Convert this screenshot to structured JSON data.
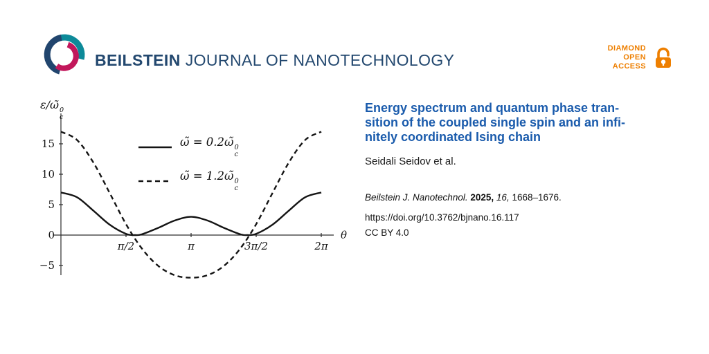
{
  "header": {
    "journal_name_bold": "BEILSTEIN",
    "journal_name_rest": "JOURNAL OF NANOTECHNOLOGY",
    "badge": {
      "line1": "DIAMOND",
      "line2": "OPEN",
      "line3": "ACCESS"
    },
    "brand_colors": {
      "navy": "#21456e",
      "teal": "#0d8a99",
      "crimson": "#c2175b",
      "orange": "#ee7f00"
    }
  },
  "article": {
    "title_lines": [
      "Energy spectrum and quantum phase tran-",
      "sition of the coupled single spin and an infi-",
      "nitely coordinated Ising chain"
    ],
    "title_color": "#1a5bac",
    "authors": "Seidali Seidov et al.",
    "citation": {
      "journal": "Beilstein J. Nanotechnol.",
      "year": "2025,",
      "volume": "16,",
      "pages": "1668–1676."
    },
    "doi": "https://doi.org/10.3762/bjnano.16.117",
    "license": "CC BY 4.0"
  },
  "chart_data": {
    "type": "line",
    "xlabel": "θ",
    "ylabel_parts": {
      "lead": "ε/ω̃",
      "sup": "0",
      "sub": "c"
    },
    "xlim_pi": [
      0,
      2
    ],
    "ylim": [
      -8,
      18
    ],
    "grid": false,
    "legend_position": "inside top-center",
    "xticks": [
      {
        "pos_pi": 0.5,
        "label": "π/2"
      },
      {
        "pos_pi": 1,
        "label": "π"
      },
      {
        "pos_pi": 1.5,
        "label": "3π/2"
      },
      {
        "pos_pi": 2,
        "label": "2π"
      }
    ],
    "yticks": [
      {
        "value": 15,
        "label": "15"
      },
      {
        "value": 10,
        "label": "10"
      },
      {
        "value": 5,
        "label": "5"
      },
      {
        "value": 0,
        "label": "0"
      },
      {
        "value": -5,
        "label": "−5"
      }
    ],
    "series": [
      {
        "name": "ω̃ = 0.2ω̃c^0",
        "label_parts": {
          "lead": "ω̃ = 0.2ω̃",
          "sup": "0",
          "sub": "c"
        },
        "style": "solid",
        "color": "#141414",
        "points": [
          [
            0,
            7.0
          ],
          [
            0.125,
            6.2
          ],
          [
            0.25,
            4.0
          ],
          [
            0.375,
            1.7
          ],
          [
            0.5,
            0.2
          ],
          [
            0.57,
            0.0
          ],
          [
            0.625,
            0.15
          ],
          [
            0.75,
            1.2
          ],
          [
            0.875,
            2.4
          ],
          [
            1,
            3.0
          ],
          [
            1.125,
            2.4
          ],
          [
            1.25,
            1.2
          ],
          [
            1.375,
            0.15
          ],
          [
            1.43,
            0.0
          ],
          [
            1.5,
            0.2
          ],
          [
            1.625,
            1.7
          ],
          [
            1.75,
            4.0
          ],
          [
            1.875,
            6.2
          ],
          [
            2,
            7.0
          ]
        ]
      },
      {
        "name": "ω̃ = 1.2ω̃c^0",
        "label_parts": {
          "lead": "ω̃ = 1.2ω̃",
          "sup": "0",
          "sub": "c"
        },
        "style": "dashed",
        "color": "#141414",
        "points": [
          [
            0,
            17.0
          ],
          [
            0.125,
            15.6
          ],
          [
            0.25,
            11.9
          ],
          [
            0.375,
            6.9
          ],
          [
            0.5,
            1.8
          ],
          [
            0.625,
            -2.3
          ],
          [
            0.75,
            -5.1
          ],
          [
            0.875,
            -6.6
          ],
          [
            1,
            -7.0
          ],
          [
            1.125,
            -6.6
          ],
          [
            1.25,
            -5.1
          ],
          [
            1.375,
            -2.3
          ],
          [
            1.5,
            1.8
          ],
          [
            1.625,
            6.9
          ],
          [
            1.75,
            11.9
          ],
          [
            1.875,
            15.6
          ],
          [
            2,
            17.0
          ]
        ]
      }
    ]
  }
}
